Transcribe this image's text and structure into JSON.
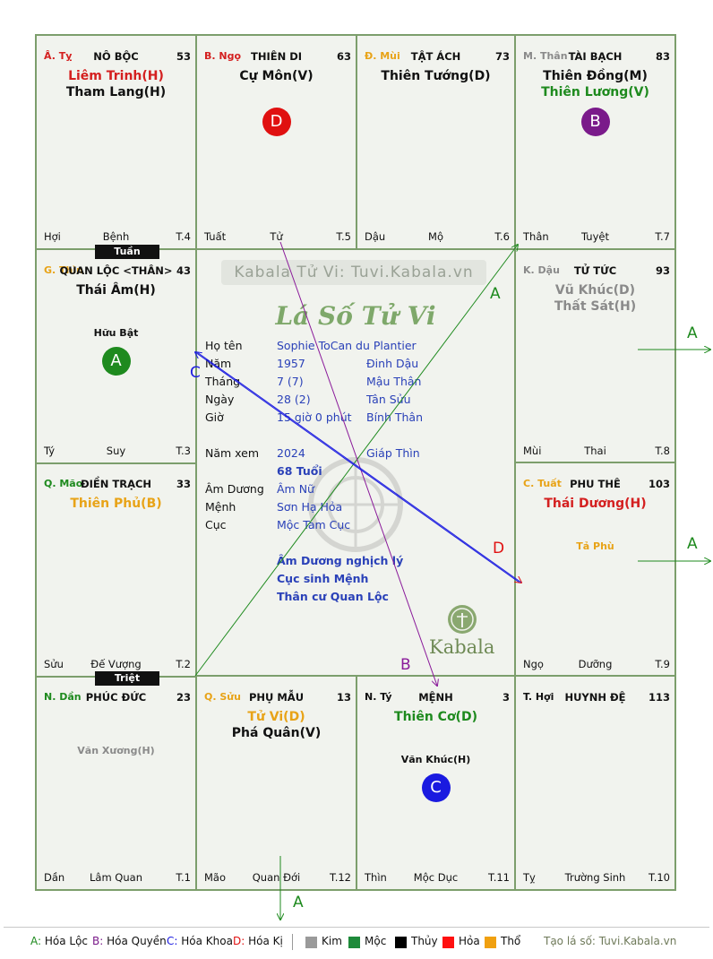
{
  "watermark": "Kabala Tử Vi: Tuvi.Kabala.vn",
  "chart_title": "Lá Số Tử Vi",
  "logo_text": "Kabala",
  "palaces": [
    {
      "pos": "Â. Tỵ",
      "pos_color": "#d42020",
      "name": "NÔ BỘC",
      "num": "53",
      "stars": [
        {
          "t": "Liêm Trinh(H)",
          "c": "#d42020"
        },
        {
          "t": "Tham Lang(H)",
          "c": "#111111"
        }
      ],
      "left": "Hợi",
      "mid": "Bệnh",
      "right": "T.4"
    },
    {
      "pos": "B. Ngọ",
      "pos_color": "#d42020",
      "name": "THIÊN DI",
      "num": "63",
      "stars": [
        {
          "t": "Cự Môn(V)",
          "c": "#111111"
        }
      ],
      "badge": "D",
      "badge_color": "#e01010",
      "left": "Tuất",
      "mid": "Tử",
      "right": "T.5"
    },
    {
      "pos": "Đ. Mùi",
      "pos_color": "#e8a317",
      "name": "TẬT ÁCH",
      "num": "73",
      "stars": [
        {
          "t": "Thiên Tướng(D)",
          "c": "#111111"
        }
      ],
      "left": "Dậu",
      "mid": "Mộ",
      "right": "T.6"
    },
    {
      "pos": "M. Thân",
      "pos_color": "#8a8a8a",
      "name": "TÀI BẠCH",
      "num": "83",
      "stars": [
        {
          "t": "Thiên Đồng(M)",
          "c": "#111111"
        },
        {
          "t": "Thiên Lương(V)",
          "c": "#1e8a1e"
        }
      ],
      "badge": "B",
      "badge_color": "#7a1a8a",
      "left": "Thân",
      "mid": "Tuyệt",
      "right": "T.7"
    },
    {
      "pos": "K. Dậu",
      "pos_color": "#8a8a8a",
      "name": "TỬ TỨC",
      "num": "93",
      "stars": [
        {
          "t": "Vũ Khúc(D)",
          "c": "#8a8a8a"
        },
        {
          "t": "Thất Sát(H)",
          "c": "#8a8a8a"
        }
      ],
      "left": "Mùi",
      "mid": "Thai",
      "right": "T.8"
    },
    {
      "pos": "C. Tuất",
      "pos_color": "#e8a317",
      "name": "PHU THÊ",
      "num": "103",
      "stars": [
        {
          "t": "Thái Dương(H)",
          "c": "#d42020"
        }
      ],
      "minor": {
        "t": "Tả Phù",
        "c": "#e8a317"
      },
      "left": "Ngọ",
      "mid": "Dưỡng",
      "right": "T.9"
    },
    {
      "pos": "T. Hợi",
      "pos_color": "#111111",
      "name": "HUYNH ĐỆ",
      "num": "113",
      "stars": [],
      "left": "Tỵ",
      "mid": "Trường Sinh",
      "right": "T.10"
    },
    {
      "pos": "N. Tý",
      "pos_color": "#111111",
      "name": "MỆNH",
      "num": "3",
      "stars": [
        {
          "t": "Thiên Cơ(D)",
          "c": "#1e8a1e"
        }
      ],
      "minor": {
        "t": "Văn Khúc(H)",
        "c": "#111111"
      },
      "badge": "C",
      "badge_color": "#1a1ae0",
      "left": "Thìn",
      "mid": "Mộc Dục",
      "right": "T.11"
    },
    {
      "pos": "Q. Sửu",
      "pos_color": "#e8a317",
      "name": "PHỤ MẪU",
      "num": "13",
      "stars": [
        {
          "t": "Tử Vi(D)",
          "c": "#e8a317"
        },
        {
          "t": "Phá Quân(V)",
          "c": "#111111"
        }
      ],
      "left": "Mão",
      "mid": "Quan Đới",
      "right": "T.12"
    },
    {
      "pos": "N. Dần",
      "pos_color": "#1e8a1e",
      "name": "PHÚC ĐỨC",
      "num": "23",
      "stars": [],
      "minor": {
        "t": "Văn Xương(H)",
        "c": "#8a8a8a"
      },
      "left": "Dần",
      "mid": "Lâm Quan",
      "right": "T.1"
    },
    {
      "pos": "Q. Mão",
      "pos_color": "#1e8a1e",
      "name": "ĐIỀN TRẠCH",
      "num": "33",
      "stars": [
        {
          "t": "Thiên Phủ(B)",
          "c": "#e8a317"
        }
      ],
      "left": "Sửu",
      "mid": "Đế Vượng",
      "right": "T.2"
    },
    {
      "pos": "G. Thìn",
      "pos_color": "#e8a317",
      "name": "QUAN LỘC <THÂN>",
      "num": "43",
      "stars": [
        {
          "t": "Thái Âm(H)",
          "c": "#111111"
        }
      ],
      "minor": {
        "t": "Hữu Bật",
        "c": "#111111"
      },
      "badge": "A",
      "badge_color": "#1e8a1e",
      "left": "Tý",
      "mid": "Suy",
      "right": "T.3"
    }
  ],
  "tags": {
    "tuan": "Tuần",
    "triet": "Triệt"
  },
  "info": {
    "rows": [
      {
        "l": "Họ tên",
        "v": "Sophie ToCan du Plantier",
        "v2": ""
      },
      {
        "l": "Năm",
        "v": "1957",
        "v2": "Đinh Dậu"
      },
      {
        "l": "Tháng",
        "v": "7  (7)",
        "v2": "Mậu Thân"
      },
      {
        "l": "Ngày",
        "v": "28  (2)",
        "v2": "Tân Sửu"
      },
      {
        "l": "Giờ",
        "v": "15 giờ 0 phút",
        "v2": "Bính Thân"
      }
    ],
    "nam_xem_label": "Năm xem",
    "nam_xem": "2024",
    "nam_xem_can": "Giáp Thìn",
    "tuoi": "68 Tuổi",
    "rows2": [
      {
        "l": "Âm Dương",
        "v": "Âm Nữ"
      },
      {
        "l": "Mệnh",
        "v": "Sơn Hạ Hỏa"
      },
      {
        "l": "Cục",
        "v": "Mộc Tam Cục"
      }
    ],
    "notes": [
      "Âm Dương nghịch lý",
      "Cục sinh Mệnh",
      "Thân cư Quan Lộc"
    ]
  },
  "arrows": {
    "A": "A",
    "B": "B",
    "C": "C",
    "D": "D"
  },
  "legend": {
    "items": [
      {
        "k": "A:",
        "t": " Hóa Lộc",
        "c": "#1e8a1e"
      },
      {
        "k": "B:",
        "t": " Hóa Quyền",
        "c": "#7a1a8a"
      },
      {
        "k": "C:",
        "t": " Hóa Khoa",
        "c": "#1a1ae0"
      },
      {
        "k": "D:",
        "t": " Hóa Kị",
        "c": "#e01010"
      }
    ],
    "elements": [
      {
        "t": "Kim",
        "c": "#9a9a9a"
      },
      {
        "t": "Mộc",
        "c": "#1e8a3a"
      },
      {
        "t": "Thủy",
        "c": "#000000"
      },
      {
        "t": "Hỏa",
        "c": "#ff1010"
      },
      {
        "t": "Thổ",
        "c": "#f0a010"
      }
    ],
    "site": "Tạo lá số: Tuvi.Kabala.vn"
  }
}
